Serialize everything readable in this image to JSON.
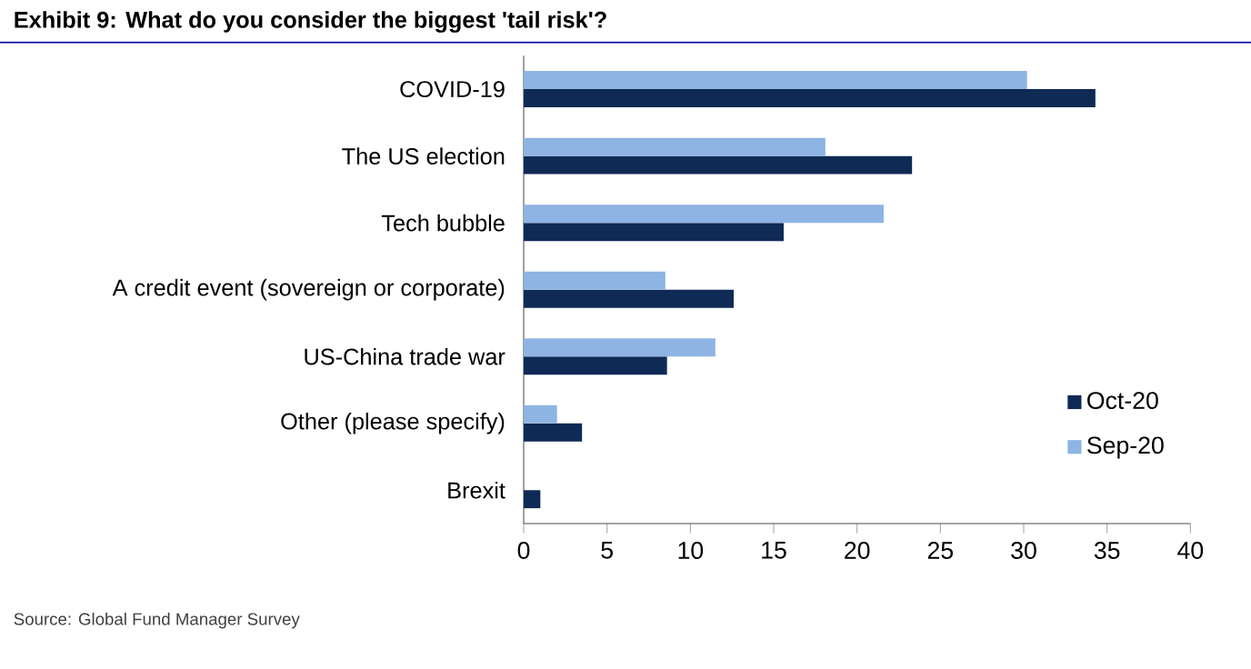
{
  "chart_data": {
    "type": "bar",
    "orientation": "horizontal",
    "title": "Exhibit 9: What do you consider the biggest 'tail risk'?",
    "categories": [
      "COVID-19",
      "The US election",
      "Tech bubble",
      "A credit event (sovereign or corporate)",
      "US-China trade war",
      "Other (please specify)",
      "Brexit"
    ],
    "series": [
      {
        "name": "Oct-20",
        "color": "#0f2a55",
        "values": [
          34.3,
          23.3,
          15.6,
          12.6,
          8.6,
          3.5,
          1.0
        ]
      },
      {
        "name": "Sep-20",
        "color": "#8eb4e3",
        "values": [
          30.2,
          18.1,
          21.6,
          8.5,
          11.5,
          2.0,
          null
        ]
      }
    ],
    "xlim": [
      0,
      40
    ],
    "xticks": [
      0,
      5,
      10,
      15,
      20,
      25,
      30,
      35,
      40
    ],
    "grid": false,
    "legend": "right",
    "annotations": [
      "Source: Global Fund Manager Survey"
    ]
  }
}
